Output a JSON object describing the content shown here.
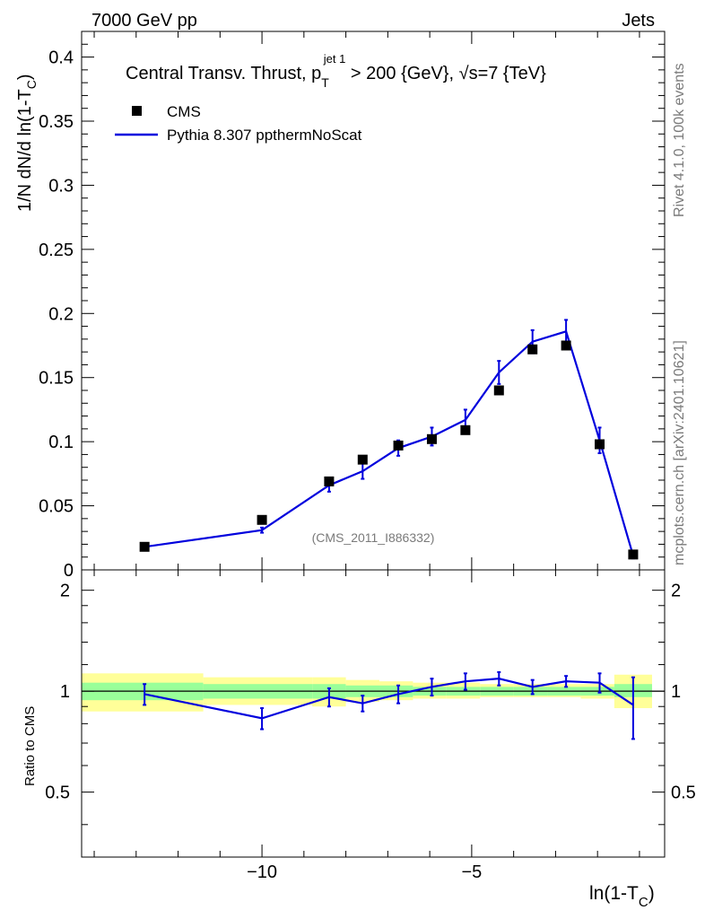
{
  "header": {
    "left": "7000 GeV pp",
    "right": "Jets"
  },
  "side": {
    "rivet": "Rivet 4.1.0,  100k events",
    "mcplots": "mcplots.cern.ch [arXiv:2401.10621]"
  },
  "chart_data": {
    "type": "line",
    "title_main": "Central Transv. Thrust, p",
    "title_sub": "T",
    "title_sup": "jet 1",
    "title_rest": " > 200 {GeV}, √s=7 {TeV}",
    "ylabel_main": "1/N    dN/d ln(1-T",
    "ylabel_sub": "C",
    "ylabel_end": ")",
    "xlabel_main": "ln(1-T",
    "xlabel_sub": "C",
    "xlabel_end": ")",
    "ratio_ylabel": "Ratio to CMS",
    "watermark": "(CMS_2011_I886332)",
    "xlim": [
      -14.3,
      -0.4
    ],
    "ylim": [
      0,
      0.42
    ],
    "ratio_ylim": [
      0.32,
      2.3
    ],
    "x_ticks": [
      -10,
      -5
    ],
    "x_tick_labels": [
      "−10",
      "−5"
    ],
    "y_ticks": [
      0,
      0.05,
      0.1,
      0.15,
      0.2,
      0.25,
      0.3,
      0.35,
      0.4
    ],
    "y_tick_labels": [
      "0",
      "0.05",
      "0.1",
      "0.15",
      "0.2",
      "0.25",
      "0.3",
      "0.35",
      "0.4"
    ],
    "ratio_ticks": [
      0.5,
      1,
      2
    ],
    "ratio_tick_labels": [
      "0.5",
      "1",
      "2"
    ],
    "legend": [
      {
        "name": "CMS",
        "color": "#000000"
      },
      {
        "name": "Pythia 8.307 ppthermNoScat",
        "color": "#0000dd"
      }
    ],
    "cms": {
      "x": [
        -12.8,
        -10.0,
        -8.4,
        -7.6,
        -6.75,
        -5.95,
        -5.15,
        -4.35,
        -3.55,
        -2.75,
        -1.95,
        -1.15
      ],
      "y": [
        0.018,
        0.039,
        0.069,
        0.086,
        0.097,
        0.102,
        0.109,
        0.14,
        0.172,
        0.175,
        0.098,
        0.012
      ]
    },
    "mc": {
      "x": [
        -12.8,
        -10.0,
        -8.4,
        -7.6,
        -6.75,
        -5.95,
        -5.15,
        -4.35,
        -3.55,
        -2.75,
        -1.95,
        -1.15
      ],
      "y": [
        0.018,
        0.031,
        0.066,
        0.077,
        0.095,
        0.104,
        0.117,
        0.154,
        0.178,
        0.186,
        0.101,
        0.011
      ],
      "err": [
        0.001,
        0.002,
        0.005,
        0.006,
        0.006,
        0.007,
        0.008,
        0.009,
        0.009,
        0.009,
        0.01,
        0.002
      ]
    },
    "ratio": {
      "x": [
        -12.8,
        -10.0,
        -8.4,
        -7.6,
        -6.75,
        -5.95,
        -5.15,
        -4.35,
        -3.55,
        -2.75,
        -1.95,
        -1.15
      ],
      "y": [
        0.98,
        0.83,
        0.96,
        0.92,
        0.98,
        1.03,
        1.07,
        1.09,
        1.03,
        1.07,
        1.06,
        0.91
      ],
      "err": [
        0.07,
        0.06,
        0.06,
        0.05,
        0.06,
        0.06,
        0.06,
        0.05,
        0.05,
        0.04,
        0.07,
        0.19
      ]
    },
    "bands": {
      "edges": [
        -14.3,
        -11.4,
        -8.8,
        -8.0,
        -7.2,
        -6.4,
        -5.6,
        -4.8,
        -4.0,
        -3.2,
        -2.4,
        -1.6,
        -0.7
      ],
      "green_lo": [
        0.94,
        0.95,
        0.95,
        0.96,
        0.96,
        0.97,
        0.97,
        0.97,
        0.97,
        0.97,
        0.97,
        0.96
      ],
      "green_hi": [
        1.06,
        1.05,
        1.05,
        1.04,
        1.04,
        1.03,
        1.03,
        1.03,
        1.03,
        1.03,
        1.03,
        1.05
      ],
      "yellow_lo": [
        0.87,
        0.91,
        0.9,
        0.93,
        0.94,
        0.95,
        0.95,
        0.96,
        0.96,
        0.96,
        0.95,
        0.89
      ],
      "yellow_hi": [
        1.13,
        1.1,
        1.1,
        1.08,
        1.07,
        1.06,
        1.06,
        1.05,
        1.05,
        1.05,
        1.05,
        1.12
      ]
    },
    "colors": {
      "mc": "#0000dd",
      "data": "#000000",
      "green": "#99ff99",
      "yellow": "#ffff99"
    }
  }
}
